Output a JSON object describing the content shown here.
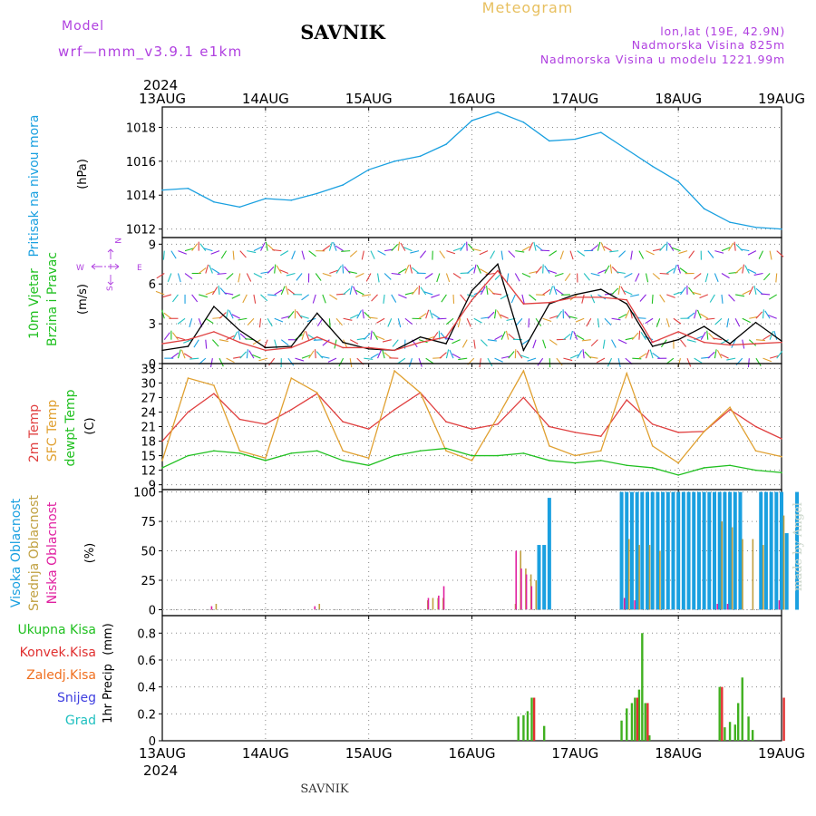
{
  "header": {
    "title": "SAVNIK",
    "subtitle": "Meteogram",
    "model_label": "Model",
    "model_name": "wrf—nmm_v3.9.1  e1km",
    "lonlat": "lon,lat (19E, 42.9N)",
    "altitude": "Nadmorska Visina 825m",
    "model_altitude": "Nadmorska Visina u modelu 1221.99m",
    "footer": "SAVNIK",
    "watermark": "made by Angel"
  },
  "colors": {
    "title": "#000000",
    "subtitle": "#e8c060",
    "model": "#b040e0",
    "pressure": "#1aa0e0",
    "temp2m": "#e04040",
    "sfc_temp": "#e0a030",
    "dewpoint": "#20c020",
    "high_cloud": "#1aa0e0",
    "mid_cloud": "#c0a040",
    "low_cloud": "#e020a0",
    "total_precip": "#40b020",
    "conv_precip": "#e03030",
    "frozen_precip": "#f07020",
    "snow": "#4040e0",
    "hail": "#20c0c0"
  },
  "time_axis": {
    "year": "2024",
    "ticks": [
      "13AUG",
      "14AUG",
      "15AUG",
      "16AUG",
      "17AUG",
      "18AUG",
      "19AUG"
    ]
  },
  "chart_data": [
    {
      "type": "line",
      "name": "pressure",
      "ylabel": "Pritisak na nivou mora",
      "unit": "(hPa)",
      "ylim": [
        1011.5,
        1019.2
      ],
      "yticks": [
        "1012",
        "1014",
        "1016",
        "1018"
      ],
      "x": [
        "13AUG 00",
        "13AUG 06",
        "13AUG 12",
        "13AUG 18",
        "14AUG 00",
        "14AUG 06",
        "14AUG 12",
        "14AUG 18",
        "15AUG 00",
        "15AUG 06",
        "15AUG 12",
        "15AUG 18",
        "16AUG 00",
        "16AUG 06",
        "16AUG 12",
        "16AUG 18",
        "17AUG 00",
        "17AUG 06",
        "17AUG 12",
        "17AUG 18",
        "18AUG 00",
        "18AUG 06",
        "18AUG 12",
        "18AUG 18",
        "19AUG 00"
      ],
      "series": [
        {
          "values": [
            1014.3,
            1014.4,
            1013.6,
            1013.3,
            1013.8,
            1013.7,
            1014.1,
            1014.6,
            1015.5,
            1016.0,
            1016.3,
            1017.0,
            1018.4,
            1018.9,
            1018.3,
            1017.2,
            1017.3,
            1017.7,
            1016.7,
            1015.7,
            1014.8,
            1013.2,
            1012.4,
            1012.1,
            1012.0
          ]
        }
      ]
    },
    {
      "type": "line",
      "name": "wind",
      "ylabel": "10m Vjetar",
      "ylabel2": "Brzina i Pravac",
      "unit": "(m/s)",
      "compass": {
        "n": "N",
        "s": "S",
        "w": "W",
        "e": "E"
      },
      "ylim": [
        0,
        9.5
      ],
      "yticks": [
        "0",
        "3",
        "6",
        "9"
      ],
      "x": [
        "13AUG 00",
        "13AUG 06",
        "13AUG 12",
        "13AUG 18",
        "14AUG 00",
        "14AUG 06",
        "14AUG 12",
        "14AUG 18",
        "15AUG 00",
        "15AUG 06",
        "15AUG 12",
        "15AUG 18",
        "16AUG 00",
        "16AUG 06",
        "16AUG 12",
        "16AUG 18",
        "17AUG 00",
        "17AUG 06",
        "17AUG 12",
        "17AUG 18",
        "18AUG 00",
        "18AUG 06",
        "18AUG 12",
        "18AUG 18",
        "19AUG 00"
      ],
      "series": [
        {
          "name": "speed",
          "values": [
            1.0,
            1.3,
            4.3,
            2.5,
            1.2,
            1.3,
            3.8,
            1.6,
            1.1,
            1.0,
            2.0,
            1.5,
            5.5,
            7.5,
            1.0,
            4.5,
            5.2,
            5.6,
            4.5,
            1.3,
            1.8,
            2.8,
            1.5,
            3.1,
            1.7
          ]
        },
        {
          "name": "gust",
          "values": [
            1.5,
            1.8,
            2.4,
            1.6,
            1.0,
            1.2,
            2.0,
            1.2,
            1.2,
            1.0,
            1.6,
            2.0,
            4.8,
            7.0,
            4.5,
            4.6,
            5.0,
            5.0,
            4.8,
            1.6,
            2.4,
            1.6,
            1.4,
            1.5,
            1.6
          ]
        }
      ]
    },
    {
      "type": "line",
      "name": "temperature",
      "ylabel": "2m Temp",
      "ylabel2": "SFC Temp",
      "ylabel3": "dewpt Temp",
      "unit": "(C)",
      "ylim": [
        8,
        34
      ],
      "yticks": [
        "9",
        "12",
        "15",
        "18",
        "21",
        "24",
        "27",
        "30",
        "33"
      ],
      "x": [
        "13AUG 00",
        "13AUG 06",
        "13AUG 12",
        "13AUG 18",
        "14AUG 00",
        "14AUG 06",
        "14AUG 12",
        "14AUG 18",
        "15AUG 00",
        "15AUG 06",
        "15AUG 12",
        "15AUG 18",
        "16AUG 00",
        "16AUG 06",
        "16AUG 12",
        "16AUG 18",
        "17AUG 00",
        "17AUG 06",
        "17AUG 12",
        "17AUG 18",
        "18AUG 00",
        "18AUG 06",
        "18AUG 12",
        "18AUG 18",
        "19AUG 00"
      ],
      "series": [
        {
          "name": "2m Temp",
          "values": [
            18.0,
            24.0,
            27.8,
            22.5,
            21.5,
            24.5,
            27.8,
            22.0,
            20.5,
            24.5,
            28.0,
            22.0,
            20.5,
            21.5,
            27.0,
            21.0,
            19.8,
            19.0,
            26.5,
            21.5,
            19.8,
            20.0,
            24.5,
            21.0,
            18.5
          ]
        },
        {
          "name": "SFC Temp",
          "values": [
            14.0,
            31.0,
            29.5,
            16.0,
            14.5,
            31.0,
            28.0,
            16.0,
            14.5,
            32.5,
            28.0,
            16.0,
            14.0,
            23.0,
            32.5,
            17.0,
            15.0,
            16.0,
            32.0,
            17.0,
            13.5,
            20.0,
            25.0,
            16.0,
            14.8
          ]
        },
        {
          "name": "dewpt Temp",
          "values": [
            12.5,
            15.0,
            16.0,
            15.5,
            14.0,
            15.5,
            16.0,
            14.0,
            13.0,
            15.0,
            16.0,
            16.5,
            15.0,
            15.0,
            15.5,
            14.0,
            13.5,
            14.0,
            13.0,
            12.5,
            11.0,
            12.5,
            13.0,
            12.0,
            11.5
          ]
        }
      ]
    },
    {
      "type": "bar",
      "name": "cloudiness",
      "ylabel": "Visoka Oblacnost",
      "ylabel2": "Srednja Oblacnost",
      "ylabel3": "Niska Oblacnost",
      "unit": "(%)",
      "ylim": [
        -5,
        102
      ],
      "yticks": [
        "0",
        "25",
        "50",
        "75",
        "100"
      ],
      "series": [
        {
          "name": "high",
          "x": [
            3.65,
            3.7,
            3.75,
            3.8,
            4.45,
            4.5,
            4.55,
            4.6,
            4.65,
            4.7,
            4.75,
            4.8,
            4.85,
            4.9,
            4.95,
            5.0,
            5.05,
            5.1,
            5.15,
            5.2,
            5.25,
            5.3,
            5.35,
            5.4,
            5.45,
            5.5,
            5.55,
            5.6,
            5.65,
            5.7,
            5.75,
            5.8,
            5.85,
            5.9,
            5.95,
            6.0,
            6.05,
            6.1,
            6.15
          ],
          "values": [
            55,
            55,
            95,
            0,
            100,
            100,
            100,
            100,
            100,
            100,
            100,
            100,
            100,
            100,
            100,
            100,
            100,
            100,
            100,
            100,
            100,
            100,
            100,
            100,
            100,
            100,
            100,
            100,
            0,
            0,
            0,
            100,
            100,
            100,
            100,
            100,
            65,
            0,
            100
          ]
        },
        {
          "name": "mid",
          "x": [
            0.5,
            1.5,
            2.55,
            2.6,
            2.65,
            2.7,
            3.4,
            3.45,
            3.5,
            3.55,
            3.6,
            4.5,
            4.6,
            4.7,
            4.8,
            5.4,
            5.5,
            5.6,
            5.7,
            5.8,
            6.0
          ],
          "values": [
            5,
            5,
            8,
            10,
            10,
            10,
            5,
            50,
            35,
            30,
            25,
            60,
            55,
            55,
            50,
            75,
            70,
            60,
            60,
            55,
            80
          ]
        },
        {
          "name": "low",
          "x": [
            0.5,
            1.5,
            2.6,
            2.7,
            2.75,
            3.45,
            3.5,
            3.55,
            3.6,
            4.5,
            4.6,
            5.4,
            5.5,
            6.0
          ],
          "values": [
            3,
            3,
            10,
            12,
            20,
            50,
            35,
            30,
            20,
            10,
            8,
            5,
            5,
            8
          ]
        }
      ]
    },
    {
      "type": "bar",
      "name": "precipitation",
      "ylabel": "1hr Precip",
      "unit": "(mm)",
      "legend": [
        "Ukupna Kisa",
        "Konvek.Kisa",
        "Zaledj.Kisa",
        "Snijeg",
        "Grad"
      ],
      "ylim": [
        0,
        0.93
      ],
      "yticks": [
        "0",
        "0.2",
        "0.4",
        "0.6",
        "0.8"
      ],
      "series": [
        {
          "name": "Ukupna Kisa",
          "x": [
            3.45,
            3.5,
            3.54,
            3.58,
            3.7,
            4.45,
            4.5,
            4.55,
            4.58,
            4.62,
            4.65,
            4.68,
            4.72,
            5.4,
            5.45,
            5.5,
            5.55,
            5.58,
            5.62,
            5.68,
            5.72
          ],
          "values": [
            0.18,
            0.19,
            0.22,
            0.32,
            0.11,
            0.15,
            0.24,
            0.28,
            0.32,
            0.38,
            0.8,
            0.28,
            0.04,
            0.4,
            0.1,
            0.14,
            0.12,
            0.28,
            0.47,
            0.18,
            0.08
          ]
        },
        {
          "name": "Konvek.Kisa",
          "x": [
            3.58,
            4.58,
            4.68,
            5.4,
            6.0
          ],
          "values": [
            0.32,
            0.32,
            0.28,
            0.4,
            0.32
          ]
        }
      ]
    }
  ],
  "footer_year": "2024"
}
